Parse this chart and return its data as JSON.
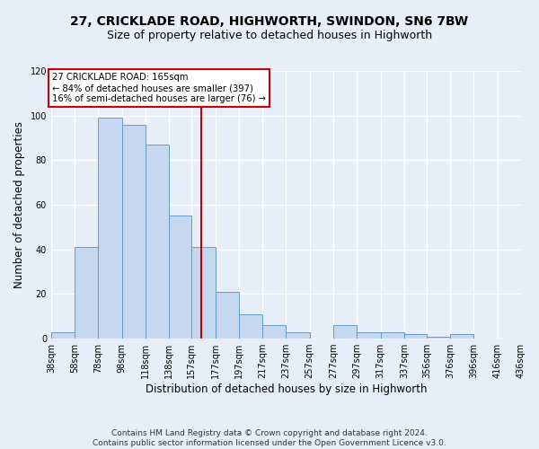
{
  "title_line1": "27, CRICKLADE ROAD, HIGHWORTH, SWINDON, SN6 7BW",
  "title_line2": "Size of property relative to detached houses in Highworth",
  "xlabel": "Distribution of detached houses by size in Highworth",
  "ylabel": "Number of detached properties",
  "bin_edges": [
    38,
    58,
    78,
    98,
    118,
    138,
    157,
    177,
    197,
    217,
    237,
    257,
    277,
    297,
    317,
    337,
    356,
    376,
    396,
    416,
    436
  ],
  "bar_heights": [
    3,
    41,
    99,
    96,
    87,
    55,
    41,
    21,
    11,
    6,
    3,
    0,
    6,
    3,
    3,
    2,
    1,
    2,
    0,
    0
  ],
  "bar_color": "#c5d8f0",
  "bar_edge_color": "#6699cc",
  "property_size": 165,
  "vline_color": "#cc0000",
  "annotation_text": "27 CRICKLADE ROAD: 165sqm\n← 84% of detached houses are smaller (397)\n16% of semi-detached houses are larger (76) →",
  "annotation_box_color": "#ffffff",
  "annotation_box_edge": "#cc0000",
  "ylim": [
    0,
    120
  ],
  "yticks": [
    0,
    20,
    40,
    60,
    80,
    100,
    120
  ],
  "tick_labels": [
    "38sqm",
    "58sqm",
    "78sqm",
    "98sqm",
    "118sqm",
    "138sqm",
    "157sqm",
    "177sqm",
    "197sqm",
    "217sqm",
    "237sqm",
    "257sqm",
    "277sqm",
    "297sqm",
    "317sqm",
    "337sqm",
    "356sqm",
    "376sqm",
    "396sqm",
    "416sqm",
    "436sqm"
  ],
  "bg_color": "#e8eef8",
  "footer": "Contains HM Land Registry data © Crown copyright and database right 2024.\nContains public sector information licensed under the Open Government Licence v3.0.",
  "grid_color": "#ffffff",
  "title_fontsize": 10,
  "subtitle_fontsize": 9,
  "axis_label_fontsize": 8.5,
  "tick_fontsize": 7,
  "footer_fontsize": 6.5
}
